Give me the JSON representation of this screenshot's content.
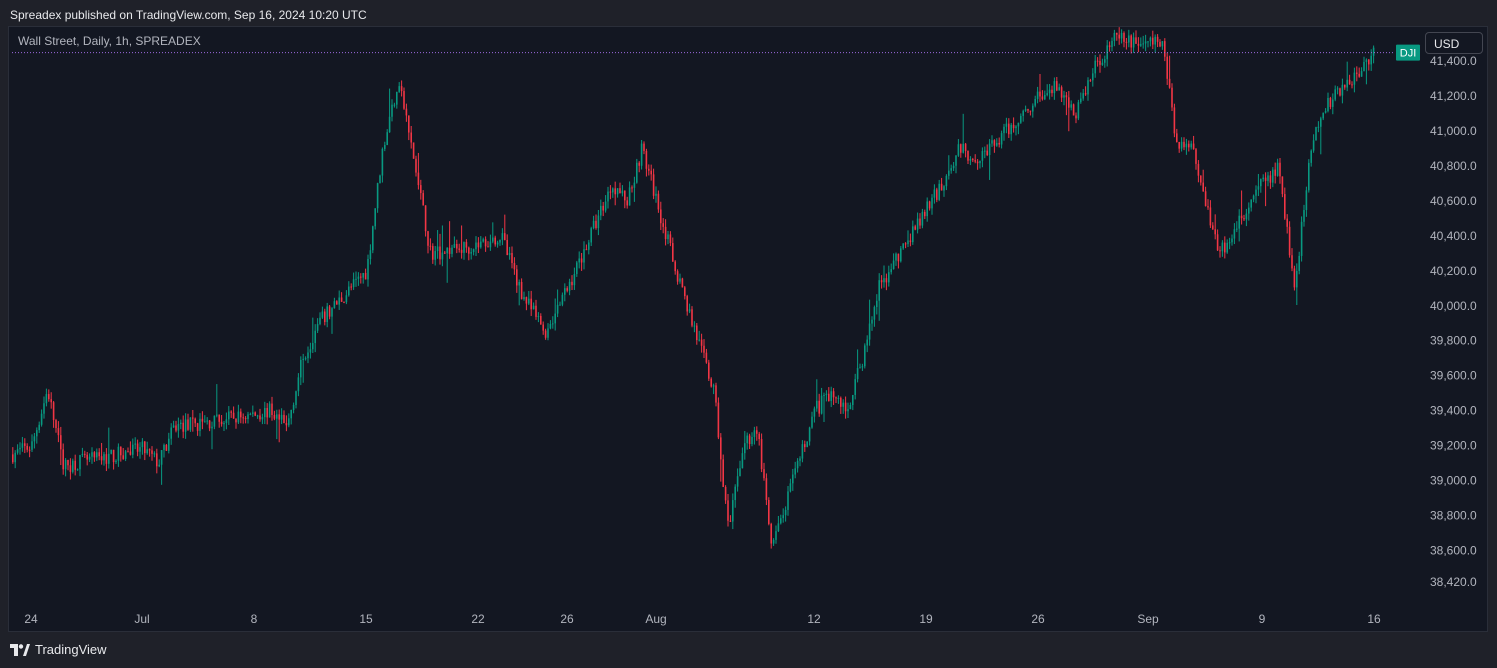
{
  "header": {
    "published_line": "Spreadex published on TradingView.com, Sep 16, 2024 10:20 UTC"
  },
  "legend": {
    "symbol_line": "Wall Street, Daily, 1h, SPREADEX"
  },
  "price_axis": {
    "currency": "USD",
    "current_badge": "DJI",
    "badge_color": "#089981"
  },
  "footer": {
    "brand": "TradingView"
  },
  "colors": {
    "up": "#089981",
    "down": "#f23645",
    "background": "#131722",
    "axis_text": "#b2b5be",
    "price_line": "#9c6ade"
  },
  "chart_data": {
    "type": "line",
    "style": "candlestick",
    "grid": false,
    "ylim": [
      38320,
      41560
    ],
    "yticks": [
      {
        "value": 41400,
        "label": "41,400.0"
      },
      {
        "value": 41200,
        "label": "41,200.0"
      },
      {
        "value": 41000,
        "label": "41,000.0"
      },
      {
        "value": 40800,
        "label": "40,800.0"
      },
      {
        "value": 40600,
        "label": "40,600.0"
      },
      {
        "value": 40400,
        "label": "40,400.0"
      },
      {
        "value": 40200,
        "label": "40,200.0"
      },
      {
        "value": 40000,
        "label": "40,000.0"
      },
      {
        "value": 39800,
        "label": "39,800.0"
      },
      {
        "value": 39600,
        "label": "39,600.0"
      },
      {
        "value": 39400,
        "label": "39,400.0"
      },
      {
        "value": 39200,
        "label": "39,200.0"
      },
      {
        "value": 39000,
        "label": "39,000.0"
      },
      {
        "value": 38800,
        "label": "38,800.0"
      },
      {
        "value": 38600,
        "label": "38,600.0"
      },
      {
        "value": 38420,
        "label": "38,420.0"
      }
    ],
    "xticks": [
      {
        "date": "2024-06-24",
        "label": "24"
      },
      {
        "date": "2024-07-01",
        "label": "Jul"
      },
      {
        "date": "2024-07-08",
        "label": "8"
      },
      {
        "date": "2024-07-15",
        "label": "15"
      },
      {
        "date": "2024-07-22",
        "label": "22"
      },
      {
        "date": "2024-07-26",
        "label": "26"
      },
      {
        "date": "2024-08-01",
        "label": "Aug"
      },
      {
        "date": "2024-08-12",
        "label": "12"
      },
      {
        "date": "2024-08-19",
        "label": "19"
      },
      {
        "date": "2024-08-26",
        "label": "26"
      },
      {
        "date": "2024-09-01",
        "label": "Sep"
      },
      {
        "date": "2024-09-09",
        "label": "9"
      },
      {
        "date": "2024-09-16",
        "label": "16"
      }
    ],
    "last_price": 41448,
    "series": [
      {
        "values": [
          [
            "2024-06-21",
            39150
          ],
          [
            "2024-06-24",
            39200
          ],
          [
            "2024-06-25",
            39520
          ],
          [
            "2024-06-26",
            39080
          ],
          [
            "2024-06-27",
            39110
          ],
          [
            "2024-06-28",
            39120
          ],
          [
            "2024-07-01",
            39180
          ],
          [
            "2024-07-02",
            39100
          ],
          [
            "2024-07-03",
            39310
          ],
          [
            "2024-07-05",
            39330
          ],
          [
            "2024-07-08",
            39380
          ],
          [
            "2024-07-09",
            39400
          ],
          [
            "2024-07-10",
            39300
          ],
          [
            "2024-07-11",
            39700
          ],
          [
            "2024-07-12",
            39900
          ],
          [
            "2024-07-15",
            40200
          ],
          [
            "2024-07-16",
            40900
          ],
          [
            "2024-07-17",
            41300
          ],
          [
            "2024-07-18",
            40800
          ],
          [
            "2024-07-19",
            40300
          ],
          [
            "2024-07-22",
            40350
          ],
          [
            "2024-07-23",
            40400
          ],
          [
            "2024-07-24",
            40050
          ],
          [
            "2024-07-25",
            39850
          ],
          [
            "2024-07-26",
            40100
          ],
          [
            "2024-07-29",
            40700
          ],
          [
            "2024-07-30",
            40600
          ],
          [
            "2024-07-31",
            40900
          ],
          [
            "2024-08-01",
            40600
          ],
          [
            "2024-08-02",
            40300
          ],
          [
            "2024-08-05",
            39500
          ],
          [
            "2024-08-06",
            38700
          ],
          [
            "2024-08-07",
            39200
          ],
          [
            "2024-08-08",
            39300
          ],
          [
            "2024-08-09",
            38600
          ],
          [
            "2024-08-12",
            39400
          ],
          [
            "2024-08-13",
            39500
          ],
          [
            "2024-08-14",
            39400
          ],
          [
            "2024-08-15",
            39700
          ],
          [
            "2024-08-16",
            40100
          ],
          [
            "2024-08-19",
            40550
          ],
          [
            "2024-08-20",
            40700
          ],
          [
            "2024-08-21",
            40900
          ],
          [
            "2024-08-22",
            40850
          ],
          [
            "2024-08-23",
            40900
          ],
          [
            "2024-08-26",
            41200
          ],
          [
            "2024-08-27",
            41250
          ],
          [
            "2024-08-28",
            41100
          ],
          [
            "2024-08-29",
            41350
          ],
          [
            "2024-08-30",
            41520
          ],
          [
            "2024-09-02",
            41500
          ],
          [
            "2024-09-03",
            40900
          ],
          [
            "2024-09-04",
            40950
          ],
          [
            "2024-09-05",
            40600
          ],
          [
            "2024-09-06",
            40300
          ],
          [
            "2024-09-09",
            40700
          ],
          [
            "2024-09-10",
            40800
          ],
          [
            "2024-09-11",
            40100
          ],
          [
            "2024-09-12",
            40900
          ],
          [
            "2024-09-13",
            41150
          ],
          [
            "2024-09-16",
            41448
          ]
        ]
      }
    ]
  }
}
